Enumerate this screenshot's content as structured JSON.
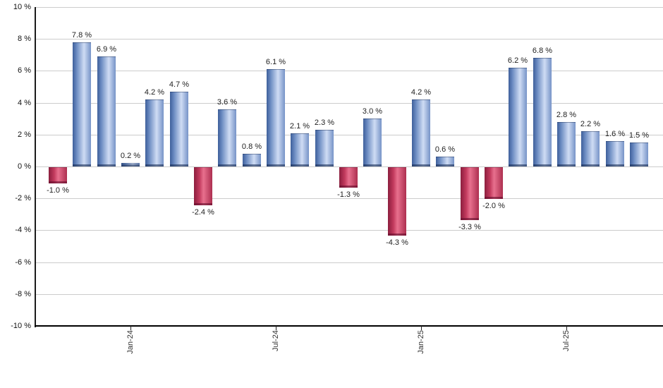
{
  "chart_data": {
    "type": "bar",
    "title": "",
    "unit": "%",
    "values": [
      -1.0,
      7.8,
      6.9,
      0.2,
      4.2,
      4.7,
      -2.4,
      3.6,
      0.8,
      6.1,
      2.1,
      2.3,
      -1.3,
      3.0,
      -4.3,
      4.2,
      0.6,
      -3.3,
      -2.0,
      6.2,
      6.8,
      2.8,
      2.2,
      1.6,
      1.5
    ],
    "value_labels": [
      "-1.0 %",
      "7.8 %",
      "6.9 %",
      "0.2 %",
      "4.2 %",
      "4.7 %",
      "-2.4 %",
      "3.6 %",
      "0.8 %",
      "6.1 %",
      "2.1 %",
      "2.3 %",
      "-1.3 %",
      "3.0 %",
      "-4.3 %",
      "4.2 %",
      "0.6 %",
      "-3.3 %",
      "-2.0 %",
      "6.2 %",
      "6.8 %",
      "2.8 %",
      "2.2 %",
      "1.6 %",
      "1.5 %"
    ],
    "x_ticks": [
      {
        "label": "Jan-24",
        "bar_index": 3
      },
      {
        "label": "Jul-24",
        "bar_index": 9
      },
      {
        "label": "Jan-25",
        "bar_index": 15
      },
      {
        "label": "Jul-25",
        "bar_index": 21
      }
    ],
    "y_axis": {
      "min": -10,
      "max": 10,
      "step": 2,
      "tick_labels": [
        "10 %",
        "8 %",
        "6 %",
        "4 %",
        "2 %",
        "0 %",
        "-2 %",
        "-4 %",
        "-6 %",
        "-8 %",
        "-10 %"
      ]
    },
    "grid": true,
    "legend": "none",
    "colors": {
      "positive_dark": "#3e5f9b",
      "positive_mid": "#6c8cc2",
      "positive_light": "#cfdcf4",
      "positive_edge": "#7693c7",
      "negative_dark": "#8c1e3e",
      "negative_mid": "#c23a5d",
      "negative_light": "#e8708e",
      "negative_edge": "#ad2f50",
      "gridline": "#cccccc",
      "axis": "#000000",
      "label_text": "#222222"
    }
  }
}
